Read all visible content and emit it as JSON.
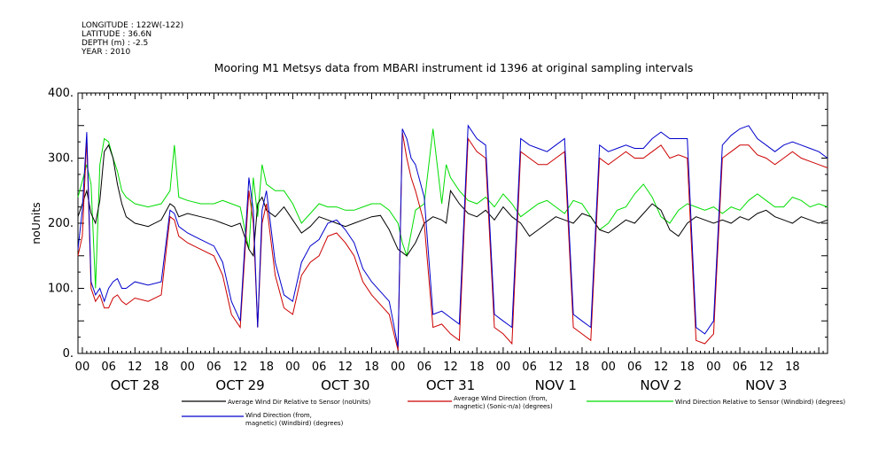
{
  "metadata": [
    "LONGITUDE : 122W(-122)",
    "LATITUDE : 36.6N",
    "DEPTH (m) : -2.5",
    "YEAR : 2010"
  ],
  "colors": {
    "black_series": "#000000",
    "red_series": "#cc0000",
    "green_series": "#00dd00",
    "blue_series": "#0000cc"
  },
  "chart_data": {
    "type": "line",
    "title": "Mooring M1 Metsys data from MBARI instrument id 1396 at original sampling intervals",
    "xlabel": "",
    "ylabel": "noUnits",
    "ylim": [
      0,
      400
    ],
    "y_ticks": [
      "0.",
      "100.",
      "200.",
      "300.",
      "400."
    ],
    "xlim_hours": [
      -1,
      170
    ],
    "hour_ticks": [
      "00",
      "06",
      "12",
      "18",
      "00",
      "06",
      "12",
      "18",
      "00",
      "06",
      "12",
      "18",
      "00",
      "06",
      "12",
      "18",
      "00",
      "06",
      "12",
      "18",
      "00",
      "06",
      "12",
      "18",
      "00",
      "06",
      "12",
      "18"
    ],
    "day_labels": [
      "OCT 28",
      "OCT 29",
      "OCT 30",
      "OCT 31",
      "NOV  1",
      "NOV  2",
      "NOV  3"
    ],
    "grid": false,
    "legend_position": "bottom",
    "series": [
      {
        "name": "Average Wind Dir Relative to Sensor (noUnits)",
        "color": "#000000",
        "x": [
          -1,
          1,
          2,
          3,
          4,
          5,
          6,
          7,
          8,
          9,
          10,
          12,
          15,
          18,
          20,
          21,
          22,
          24,
          27,
          30,
          32,
          34,
          36,
          38,
          39,
          40,
          41,
          42,
          44,
          46,
          48,
          50,
          52,
          54,
          56,
          58,
          60,
          62,
          64,
          66,
          68,
          70,
          72,
          74,
          76,
          78,
          80,
          82,
          83,
          84,
          86,
          88,
          90,
          92,
          94,
          96,
          98,
          100,
          102,
          104,
          106,
          108,
          110,
          112,
          114,
          116,
          118,
          120,
          122,
          124,
          126,
          128,
          130,
          132,
          134,
          136,
          138,
          140,
          142,
          144,
          146,
          148,
          150,
          152,
          154,
          156,
          158,
          160,
          162,
          164,
          166,
          168,
          170
        ],
        "y": [
          210,
          250,
          215,
          200,
          235,
          310,
          320,
          300,
          260,
          230,
          210,
          200,
          195,
          205,
          230,
          225,
          210,
          215,
          210,
          205,
          200,
          195,
          200,
          160,
          150,
          230,
          240,
          220,
          210,
          225,
          205,
          185,
          195,
          210,
          205,
          200,
          195,
          200,
          205,
          210,
          212,
          190,
          160,
          150,
          170,
          200,
          210,
          205,
          200,
          250,
          230,
          215,
          210,
          220,
          205,
          225,
          210,
          200,
          180,
          190,
          200,
          210,
          205,
          200,
          215,
          210,
          190,
          185,
          195,
          205,
          200,
          215,
          230,
          220,
          190,
          180,
          200,
          210,
          205,
          200,
          205,
          200,
          210,
          205,
          215,
          220,
          210,
          205,
          200,
          210,
          205,
          200,
          205
        ]
      },
      {
        "name": "Average Wind Direction (from, magnetic) (Sonic-n/a) (degrees)",
        "color": "#cc0000",
        "x": [
          -1,
          0,
          1,
          2,
          3,
          4,
          5,
          6,
          7,
          8,
          9,
          10,
          12,
          15,
          18,
          20,
          21,
          22,
          24,
          27,
          30,
          32,
          34,
          36,
          38,
          39,
          40,
          41,
          42,
          44,
          46,
          48,
          50,
          52,
          54,
          56,
          58,
          60,
          62,
          64,
          66,
          68,
          70,
          72,
          73,
          74,
          75,
          76,
          78,
          80,
          82,
          84,
          86,
          88,
          90,
          92,
          94,
          96,
          98,
          100,
          102,
          104,
          106,
          108,
          110,
          112,
          114,
          116,
          118,
          120,
          122,
          124,
          126,
          128,
          130,
          132,
          134,
          136,
          138,
          140,
          142,
          144,
          146,
          148,
          150,
          152,
          154,
          156,
          158,
          160,
          162,
          164,
          166,
          168,
          170
        ],
        "y": [
          150,
          180,
          330,
          100,
          80,
          90,
          70,
          70,
          85,
          90,
          80,
          75,
          85,
          80,
          90,
          210,
          205,
          180,
          170,
          160,
          150,
          120,
          60,
          40,
          250,
          200,
          40,
          200,
          230,
          120,
          70,
          60,
          120,
          140,
          150,
          180,
          185,
          170,
          150,
          110,
          90,
          75,
          60,
          5,
          340,
          300,
          270,
          250,
          200,
          40,
          45,
          30,
          20,
          330,
          310,
          300,
          40,
          30,
          15,
          310,
          300,
          290,
          290,
          300,
          310,
          40,
          30,
          20,
          300,
          290,
          300,
          310,
          300,
          300,
          310,
          320,
          300,
          305,
          300,
          20,
          15,
          30,
          300,
          310,
          320,
          320,
          305,
          300,
          290,
          300,
          310,
          300,
          295,
          290,
          285
        ]
      },
      {
        "name": "Wind Direction Relative to Sensor (Windbird) (degrees)",
        "color": "#00dd00",
        "x": [
          -1,
          1,
          2,
          3,
          4,
          5,
          6,
          7,
          8,
          9,
          10,
          12,
          15,
          18,
          20,
          21,
          22,
          24,
          27,
          30,
          32,
          34,
          36,
          38,
          39,
          40,
          41,
          42,
          44,
          46,
          48,
          50,
          52,
          54,
          56,
          58,
          60,
          62,
          64,
          66,
          68,
          70,
          72,
          73,
          74,
          76,
          78,
          80,
          82,
          83,
          84,
          86,
          88,
          90,
          92,
          94,
          96,
          98,
          100,
          102,
          104,
          106,
          108,
          110,
          112,
          114,
          116,
          118,
          120,
          122,
          124,
          126,
          128,
          130,
          132,
          134,
          136,
          138,
          140,
          142,
          144,
          146,
          148,
          150,
          152,
          154,
          156,
          158,
          160,
          162,
          164,
          166,
          168,
          170
        ],
        "y": [
          240,
          290,
          260,
          100,
          290,
          330,
          325,
          300,
          280,
          250,
          240,
          230,
          225,
          230,
          250,
          320,
          240,
          235,
          230,
          230,
          235,
          230,
          225,
          160,
          270,
          210,
          290,
          260,
          250,
          250,
          230,
          200,
          215,
          230,
          225,
          225,
          220,
          220,
          225,
          230,
          230,
          220,
          200,
          170,
          150,
          220,
          230,
          345,
          230,
          290,
          270,
          250,
          235,
          230,
          240,
          225,
          245,
          230,
          210,
          220,
          230,
          235,
          225,
          215,
          235,
          230,
          210,
          190,
          200,
          220,
          225,
          245,
          260,
          240,
          210,
          200,
          220,
          230,
          225,
          220,
          225,
          215,
          225,
          220,
          235,
          245,
          235,
          225,
          225,
          240,
          235,
          225,
          230,
          225
        ]
      },
      {
        "name": "Wind Direction (from, magnetic) (Windbird) (degrees)",
        "color": "#0000cc",
        "x": [
          -1,
          0,
          1,
          2,
          3,
          4,
          5,
          6,
          7,
          8,
          9,
          10,
          12,
          15,
          18,
          20,
          21,
          22,
          24,
          27,
          30,
          32,
          34,
          36,
          38,
          39,
          40,
          41,
          42,
          44,
          46,
          48,
          50,
          52,
          54,
          56,
          58,
          60,
          62,
          64,
          66,
          68,
          70,
          72,
          73,
          74,
          75,
          76,
          78,
          80,
          82,
          84,
          86,
          88,
          90,
          92,
          94,
          96,
          98,
          100,
          102,
          104,
          106,
          108,
          110,
          112,
          114,
          116,
          118,
          120,
          122,
          124,
          126,
          128,
          130,
          132,
          134,
          136,
          138,
          140,
          142,
          144,
          146,
          148,
          150,
          152,
          154,
          156,
          158,
          160,
          162,
          164,
          166,
          168,
          170
        ],
        "y": [
          160,
          220,
          340,
          110,
          90,
          100,
          80,
          100,
          110,
          115,
          100,
          100,
          110,
          105,
          110,
          220,
          215,
          195,
          185,
          175,
          165,
          140,
          80,
          50,
          270,
          220,
          40,
          220,
          250,
          140,
          90,
          80,
          140,
          165,
          175,
          200,
          205,
          190,
          170,
          130,
          110,
          95,
          80,
          10,
          345,
          330,
          300,
          290,
          240,
          60,
          65,
          55,
          45,
          350,
          330,
          320,
          60,
          50,
          40,
          330,
          320,
          315,
          310,
          320,
          330,
          60,
          50,
          40,
          320,
          310,
          315,
          320,
          315,
          315,
          330,
          340,
          330,
          330,
          330,
          40,
          30,
          50,
          320,
          335,
          345,
          350,
          330,
          320,
          310,
          320,
          325,
          320,
          315,
          310,
          300
        ]
      }
    ]
  }
}
